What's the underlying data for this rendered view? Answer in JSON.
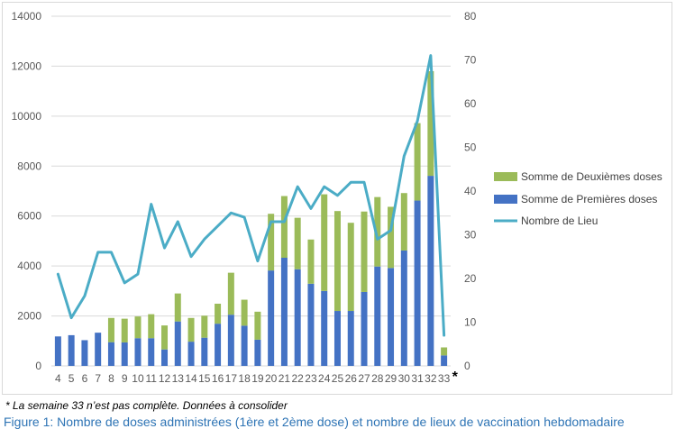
{
  "chart_data": {
    "type": "bar",
    "stacked": true,
    "secondary_axis_line": true,
    "categories": [
      "4",
      "5",
      "6",
      "7",
      "8",
      "9",
      "10",
      "11",
      "12",
      "13",
      "14",
      "15",
      "16",
      "17",
      "18",
      "19",
      "20",
      "21",
      "22",
      "23",
      "24",
      "25",
      "26",
      "27",
      "28",
      "29",
      "30",
      "31",
      "32",
      "33"
    ],
    "series": [
      {
        "name": "Somme de Premières doses",
        "axis": "left",
        "kind": "bar",
        "color": "#4472c4",
        "values": [
          1180,
          1230,
          1030,
          1330,
          950,
          940,
          1110,
          1110,
          660,
          1780,
          970,
          1130,
          1690,
          2050,
          1610,
          1050,
          3820,
          4330,
          3870,
          3290,
          3000,
          2200,
          2200,
          2960,
          3980,
          3920,
          4620,
          6620,
          7610,
          420
        ]
      },
      {
        "name": "Somme de Deuxièmes doses",
        "axis": "left",
        "kind": "bar",
        "color": "#9bbb59",
        "values": [
          0,
          0,
          0,
          0,
          970,
          950,
          870,
          960,
          960,
          1120,
          950,
          880,
          800,
          1680,
          1040,
          1120,
          2270,
          2470,
          2060,
          1770,
          3870,
          4000,
          3530,
          3220,
          2780,
          2450,
          2300,
          3100,
          4190,
          320
        ]
      },
      {
        "name": "Nombre de Lieu",
        "axis": "right",
        "kind": "line",
        "color": "#4bacc6",
        "values": [
          21,
          11,
          16,
          26,
          26,
          19,
          21,
          37,
          27,
          33,
          25,
          29,
          32,
          35,
          34,
          24,
          33,
          33,
          41,
          36,
          41,
          39,
          42,
          42,
          29,
          31,
          48,
          56,
          71,
          7
        ]
      }
    ],
    "ylim_left": [
      0,
      14000
    ],
    "yticks_left": [
      "0",
      "2000",
      "4000",
      "6000",
      "8000",
      "10000",
      "12000",
      "14000"
    ],
    "ylim_right": [
      0,
      80
    ],
    "yticks_right": [
      "0",
      "10",
      "20",
      "30",
      "40",
      "50",
      "60",
      "70",
      "80"
    ],
    "last_category_marker": "*",
    "legend_position": "right",
    "legend_order": [
      "Somme de Deuxièmes doses",
      "Somme de Premières doses",
      "Nombre de Lieu"
    ],
    "grid": true,
    "grid_color": "#d9d9d9"
  },
  "footnote": "* La semaine 33 n’est pas complète. Données à consolider",
  "caption": "Figure 1: Nombre de doses administrées (1ère et 2ème dose) et nombre de lieux de vaccination hebdomadaire"
}
